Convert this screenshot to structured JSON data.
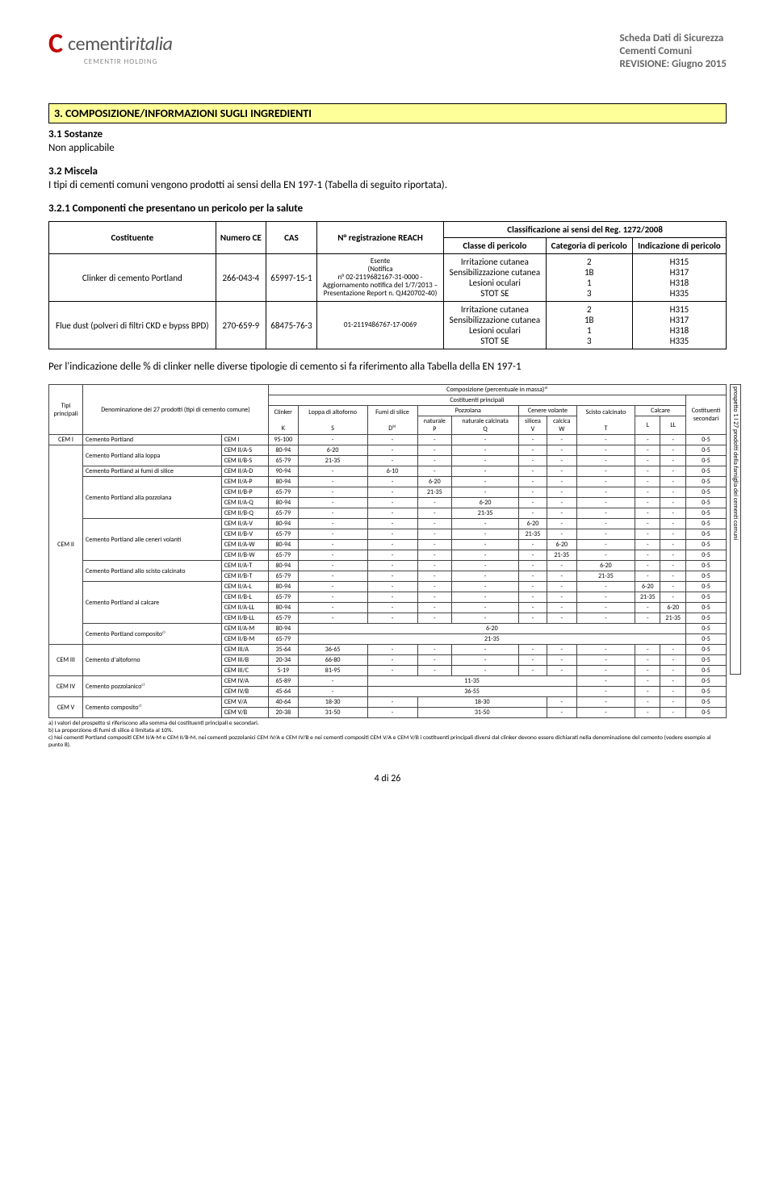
{
  "header": {
    "logo_c": "C",
    "logo_main": "cementir",
    "logo_italic": "italia",
    "logo_sub": "CEMENTIR HOLDING",
    "doc_lines": [
      "Scheda Dati di Sicurezza",
      "Cementi Comuni",
      "REVISIONE: Giugno 2015"
    ]
  },
  "section3": {
    "heading": "3. COMPOSIZIONE/INFORMAZIONI SUGLI INGREDIENTI",
    "sub1": "3.1 Sostanze",
    "sub1_text": "Non applicabile",
    "sub2": "3.2 Miscela",
    "sub2_text": "I tipi di cementi comuni vengono prodotti ai sensi della EN 197-1 (Tabella di seguito riportata).",
    "sub3": "3.2.1 Componenti che presentano un pericolo per la salute"
  },
  "comp_table": {
    "headers": {
      "costituente": "Costituente",
      "numero_ce": "Numero CE",
      "cas": "CAS",
      "reg_reach": "N° registrazione REACH",
      "class_title": "Classificazione ai sensi del Reg. 1272/2008",
      "classe": "Classe di pericolo",
      "categoria": "Categoria di pericolo",
      "indicazione": "Indicazione di pericolo"
    },
    "rows": [
      {
        "costituente": "Clinker di cemento Portland",
        "numero_ce": "266-043-4",
        "cas": "65997-15-1",
        "reg_reach": "Esente\n(Notifica\nn° 02-2119682167-31-0000 -\nAggiornamento notifica del 1/7/2013 –\nPresentazione Report n. QJ420702-40)",
        "classe": "Irritazione cutanea\nSensibilizzazione cutanea\nLesioni oculari\nSTOT SE",
        "categoria": "2\n1B\n1\n3",
        "indicazione": "H315\nH317\nH318\nH335"
      },
      {
        "costituente": "Flue dust (polveri di filtri CKD e bypss BPD)",
        "numero_ce": "270-659-9",
        "cas": "68475-76-3",
        "reg_reach": "01-2119486767-17-0069",
        "classe": "Irritazione cutanea\nSensibilizzazione cutanea\nLesioni oculari\nSTOT SE",
        "categoria": "2\n1B\n1\n3",
        "indicazione": "H315\nH317\nH318\nH335"
      }
    ]
  },
  "mid_text": "Per l'indicazione delle % di clinker nelle diverse tipologie di cemento si fa riferimento alla Tabella della EN 197-1",
  "en_table": {
    "side_label": "prospetto 1     I 27 prodotti della famiglia dei cementi comuni",
    "top_headers": {
      "tipi": "Tipi principali",
      "denom": "Denominazione dei 27 prodotti (tipi di cemento comune)",
      "comp": "Composizione (percentuale in massa)ᵃ⁾",
      "cost_princ": "Costituenti principali",
      "cost_sec": "Costituenti secondari",
      "clinker": "Clinker",
      "loppa": "Loppa di altoforno",
      "fumi": "Fumi di silice",
      "pozzolana": "Pozzolana",
      "poz_nat": "naturale",
      "poz_calc": "naturale calcinata",
      "cenere": "Cenere volante",
      "cen_sil": "silicea",
      "cen_cal": "calcica",
      "scisto": "Scisto calcinato",
      "calcare": "Calcare",
      "K": "K",
      "S": "S",
      "D": "Dᵇ⁾",
      "P": "P",
      "Q": "Q",
      "V": "V",
      "W": "W",
      "T": "T",
      "L": "L",
      "LL": "LL"
    },
    "groups": [
      {
        "tipo": "CEM I",
        "label": "Cemento Portland",
        "rows": [
          {
            "code": "CEM I",
            "k": "95-100",
            "s": "-",
            "d": "-",
            "p": "-",
            "q": "-",
            "v": "-",
            "w": "-",
            "t": "-",
            "l": "-",
            "ll": "-",
            "sec": "0-5"
          }
        ]
      },
      {
        "tipo": "CEM II",
        "subs": [
          {
            "label": "Cemento Portland alla loppa",
            "rows": [
              {
                "code": "CEM II/A-S",
                "k": "80-94",
                "s": "6-20",
                "d": "-",
                "p": "-",
                "q": "-",
                "v": "-",
                "w": "-",
                "t": "-",
                "l": "-",
                "ll": "-",
                "sec": "0-5"
              },
              {
                "code": "CEM II/B-S",
                "k": "65-79",
                "s": "21-35",
                "d": "-",
                "p": "-",
                "q": "-",
                "v": "-",
                "w": "-",
                "t": "-",
                "l": "-",
                "ll": "-",
                "sec": "0-5"
              }
            ]
          },
          {
            "label": "Cemento Portland ai fumi di silice",
            "rows": [
              {
                "code": "CEM II/A-D",
                "k": "90-94",
                "s": "-",
                "d": "6-10",
                "p": "-",
                "q": "-",
                "v": "-",
                "w": "-",
                "t": "-",
                "l": "-",
                "ll": "-",
                "sec": "0-5"
              }
            ]
          },
          {
            "label": "Cemento Portland alla pozzolana",
            "rows": [
              {
                "code": "CEM II/A-P",
                "k": "80-94",
                "s": "-",
                "d": "-",
                "p": "6-20",
                "q": "-",
                "v": "-",
                "w": "-",
                "t": "-",
                "l": "-",
                "ll": "-",
                "sec": "0-5"
              },
              {
                "code": "CEM II/B-P",
                "k": "65-79",
                "s": "-",
                "d": "-",
                "p": "21-35",
                "q": "-",
                "v": "-",
                "w": "-",
                "t": "-",
                "l": "-",
                "ll": "-",
                "sec": "0-5"
              },
              {
                "code": "CEM II/A-Q",
                "k": "80-94",
                "s": "-",
                "d": "-",
                "p": "-",
                "q": "6-20",
                "v": "-",
                "w": "-",
                "t": "-",
                "l": "-",
                "ll": "-",
                "sec": "0-5"
              },
              {
                "code": "CEM II/B-Q",
                "k": "65-79",
                "s": "-",
                "d": "-",
                "p": "-",
                "q": "21-35",
                "v": "-",
                "w": "-",
                "t": "-",
                "l": "-",
                "ll": "-",
                "sec": "0-5"
              }
            ]
          },
          {
            "label": "Cemento Portland alle ceneri volanti",
            "rows": [
              {
                "code": "CEM II/A-V",
                "k": "80-94",
                "s": "-",
                "d": "-",
                "p": "-",
                "q": "-",
                "v": "6-20",
                "w": "-",
                "t": "-",
                "l": "-",
                "ll": "-",
                "sec": "0-5"
              },
              {
                "code": "CEM II/B-V",
                "k": "65-79",
                "s": "-",
                "d": "-",
                "p": "-",
                "q": "-",
                "v": "21-35",
                "w": "-",
                "t": "-",
                "l": "-",
                "ll": "-",
                "sec": "0-5"
              },
              {
                "code": "CEM II/A-W",
                "k": "80-94",
                "s": "-",
                "d": "-",
                "p": "-",
                "q": "-",
                "v": "-",
                "w": "6-20",
                "t": "-",
                "l": "-",
                "ll": "-",
                "sec": "0-5"
              },
              {
                "code": "CEM II/B-W",
                "k": "65-79",
                "s": "-",
                "d": "-",
                "p": "-",
                "q": "-",
                "v": "-",
                "w": "21-35",
                "t": "-",
                "l": "-",
                "ll": "-",
                "sec": "0-5"
              }
            ]
          },
          {
            "label": "Cemento Portland allo scisto calcinato",
            "rows": [
              {
                "code": "CEM II/A-T",
                "k": "80-94",
                "s": "-",
                "d": "-",
                "p": "-",
                "q": "-",
                "v": "-",
                "w": "-",
                "t": "6-20",
                "l": "-",
                "ll": "-",
                "sec": "0-5"
              },
              {
                "code": "CEM II/B-T",
                "k": "65-79",
                "s": "-",
                "d": "-",
                "p": "-",
                "q": "-",
                "v": "-",
                "w": "-",
                "t": "21-35",
                "l": "-",
                "ll": "-",
                "sec": "0-5"
              }
            ]
          },
          {
            "label": "Cemento Portland al calcare",
            "rows": [
              {
                "code": "CEM II/A-L",
                "k": "80-94",
                "s": "-",
                "d": "-",
                "p": "-",
                "q": "-",
                "v": "-",
                "w": "-",
                "t": "-",
                "l": "6-20",
                "ll": "-",
                "sec": "0-5"
              },
              {
                "code": "CEM II/B-L",
                "k": "65-79",
                "s": "-",
                "d": "-",
                "p": "-",
                "q": "-",
                "v": "-",
                "w": "-",
                "t": "-",
                "l": "21-35",
                "ll": "-",
                "sec": "0-5"
              },
              {
                "code": "CEM II/A-LL",
                "k": "80-94",
                "s": "-",
                "d": "-",
                "p": "-",
                "q": "-",
                "v": "-",
                "w": "-",
                "t": "-",
                "l": "-",
                "ll": "6-20",
                "sec": "0-5"
              },
              {
                "code": "CEM II/B-LL",
                "k": "65-79",
                "s": "-",
                "d": "-",
                "p": "-",
                "q": "-",
                "v": "-",
                "w": "-",
                "t": "-",
                "l": "-",
                "ll": "21-35",
                "sec": "0-5"
              }
            ]
          },
          {
            "label": "Cemento Portland compositoᶜ⁾",
            "rows": [
              {
                "code": "CEM II/A-M",
                "k": "80-94",
                "span": "6-20",
                "sec": "0-5"
              },
              {
                "code": "CEM II/B-M",
                "k": "65-79",
                "span": "21-35",
                "sec": "0-5"
              }
            ]
          }
        ]
      },
      {
        "tipo": "CEM III",
        "label": "Cemento d'altoforno",
        "rows": [
          {
            "code": "CEM III/A",
            "k": "35-64",
            "s": "36-65",
            "d": "-",
            "p": "-",
            "q": "-",
            "v": "-",
            "w": "-",
            "t": "-",
            "l": "-",
            "ll": "-",
            "sec": "0-5"
          },
          {
            "code": "CEM III/B",
            "k": "20-34",
            "s": "66-80",
            "d": "-",
            "p": "-",
            "q": "-",
            "v": "-",
            "w": "-",
            "t": "-",
            "l": "-",
            "ll": "-",
            "sec": "0-5"
          },
          {
            "code": "CEM III/C",
            "k": "5-19",
            "s": "81-95",
            "d": "-",
            "p": "-",
            "q": "-",
            "v": "-",
            "w": "-",
            "t": "-",
            "l": "-",
            "ll": "-",
            "sec": "0-5"
          }
        ]
      },
      {
        "tipo": "CEM IV",
        "label": "Cemento pozzolanicoᶜ⁾",
        "rows": [
          {
            "code": "CEM IV/A",
            "k": "65-89",
            "s": "-",
            "span5": "11-35",
            "t": "-",
            "l": "-",
            "ll": "-",
            "sec": "0-5"
          },
          {
            "code": "CEM IV/B",
            "k": "45-64",
            "s": "-",
            "span5": "36-55",
            "t": "-",
            "l": "-",
            "ll": "-",
            "sec": "0-5"
          }
        ]
      },
      {
        "tipo": "CEM V",
        "label": "Cemento compositoᶜ⁾",
        "rows": [
          {
            "code": "CEM V/A",
            "k": "40-64",
            "s": "18-30",
            "d": "-",
            "span3": "18-30",
            "w": "-",
            "t": "-",
            "l": "-",
            "ll": "-",
            "sec": "0-5"
          },
          {
            "code": "CEM V/B",
            "k": "20-38",
            "s": "31-50",
            "d": "-",
            "span3": "31-50",
            "w": "-",
            "t": "-",
            "l": "-",
            "ll": "-",
            "sec": "0-5"
          }
        ]
      }
    ],
    "notes": [
      "a)   I valori del prospetto si riferiscono alla somma dei costituenti principali e secondari.",
      "b)   La proporzione di fumi di silice è limitata al 10%.",
      "c)   Nei cementi Portland compositi CEM II/A-M e CEM II/B-M, nei cementi pozzolanici CEM IV/A e CEM IV/B e nei cementi compositi CEM V/A e CEM V/B i costituenti principali diversi dal clinker devono essere dichiarati nella denominazione del cemento (vedere esempio al punto 8)."
    ]
  },
  "footer": "4 di 26"
}
